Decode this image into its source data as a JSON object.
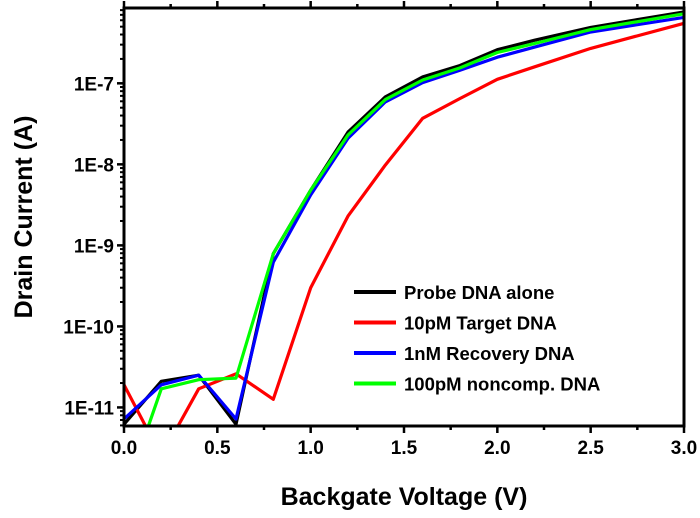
{
  "chart_data": {
    "type": "line",
    "xlabel": "Backgate Voltage (V)",
    "ylabel": "Drain Current (A)",
    "xlim": [
      0,
      3.0
    ],
    "ylim": [
      5.9e-12,
      8.5e-07
    ],
    "yscale": "log",
    "grid": false,
    "legend_position": "bottom-right",
    "x_ticks": [
      0.0,
      0.5,
      1.0,
      1.5,
      2.0,
      2.5,
      3.0
    ],
    "x_tick_labels": [
      "0.0",
      "0.5",
      "1.0",
      "1.5",
      "2.0",
      "2.5",
      "3.0"
    ],
    "y_ticks": [
      1e-11,
      1e-10,
      1e-09,
      1e-08,
      1e-07
    ],
    "y_tick_labels": [
      "1E-11",
      "1E-10",
      "1E-9",
      "1E-8",
      "1E-7"
    ],
    "x": [
      0.0,
      0.2,
      0.4,
      0.6,
      0.8,
      1.0,
      1.2,
      1.4,
      1.6,
      1.8,
      2.0,
      2.2,
      2.5,
      3.0
    ],
    "series": [
      {
        "name": "Probe DNA alone",
        "color": "#000000",
        "values": [
          6.2e-12,
          2.1e-11,
          2.5e-11,
          6.2e-12,
          7.9e-10,
          4.8e-09,
          2.5e-08,
          6.8e-08,
          1.2e-07,
          1.66e-07,
          2.6e-07,
          3.4e-07,
          4.9e-07,
          7.6e-07
        ]
      },
      {
        "name": "10pM Target DNA",
        "color": "#ff0000",
        "values": [
          1.9e-11,
          2.5e-12,
          1.7e-11,
          2.6e-11,
          1.26e-11,
          3e-10,
          2.3e-09,
          9.8e-09,
          3.7e-08,
          6.5e-08,
          1.12e-07,
          1.6e-07,
          2.7e-07,
          5.5e-07
        ]
      },
      {
        "name": "1nM Recovery DNA",
        "color": "#0000ff",
        "values": [
          7.2e-12,
          1.9e-11,
          2.5e-11,
          7.2e-12,
          6.2e-10,
          4.2e-09,
          2.1e-08,
          5.9e-08,
          1.02e-07,
          1.45e-07,
          2.1e-07,
          2.8e-07,
          4.3e-07,
          6.5e-07
        ]
      },
      {
        "name": "100pM noncomp. DNA",
        "color": "#00ff00",
        "values": [
          8e-13,
          1.7e-11,
          2.2e-11,
          2.3e-11,
          7.9e-10,
          4.8e-09,
          2.3e-08,
          6.3e-08,
          1.1e-07,
          1.55e-07,
          2.4e-07,
          3.1e-07,
          4.6e-07,
          7.2e-07
        ]
      }
    ]
  }
}
